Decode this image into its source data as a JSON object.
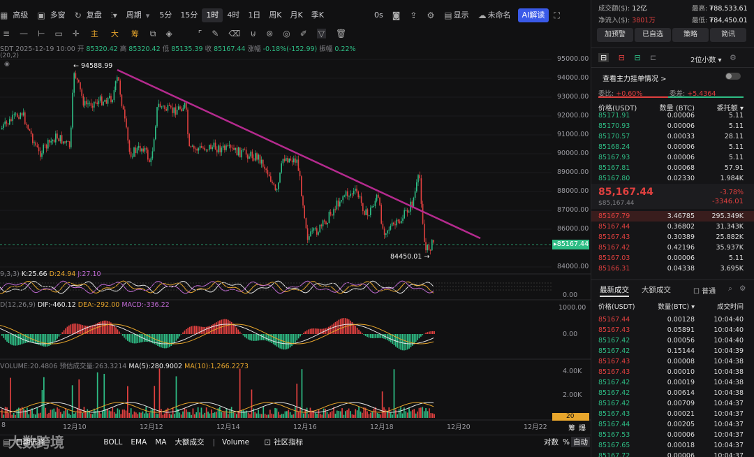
{
  "toolbar": {
    "items": [
      "高级",
      "多窗",
      "复盘",
      "周期",
      "5分",
      "15分",
      "1时",
      "4时",
      "1日",
      "周K",
      "月K",
      "季K"
    ],
    "zero_s": "0s",
    "show": "显示",
    "unnamed": "未命名",
    "ai": "AI解读"
  },
  "draw_tools": [
    "主",
    "大",
    "筹"
  ],
  "info": {
    "pair": "SDT",
    "date": "2025-12-19 10:00",
    "open_label": "开",
    "open": "85320.42",
    "high_label": "高",
    "high": "85320.42",
    "low_label": "低",
    "low": "85135.39",
    "close_label": "收",
    "close": "85167.44",
    "change_label": "涨幅",
    "change": "-0.18%(-152.99)",
    "amp_label": "振幅",
    "amp": "0.22%",
    "sub": "(20,2)"
  },
  "chart": {
    "price_labels": [
      "95000.00",
      "94000.00",
      "93000.00",
      "92000.00",
      "91000.00",
      "90000.00",
      "89000.00",
      "88000.00",
      "87000.00",
      "86000.00",
      "85000.00",
      "84000.00"
    ],
    "high_marker": "94588.99",
    "low_marker": "84450.01",
    "current_price": "85167.44",
    "x_labels": [
      "8",
      "12月10",
      "12月12",
      "12月14",
      "12月16",
      "12月18",
      "12月20",
      "12月22"
    ]
  },
  "kdj": {
    "label": "9,3,3)",
    "k": "K:25.66",
    "d": "D:24.94",
    "j": "J:27.10",
    "axis": "0.00"
  },
  "macd": {
    "label": "D(12,26,9)",
    "dif": "DIF:-460.12",
    "dea": "DEA:-292.00",
    "macd": "MACD:-336.22",
    "axis_top": "1000.00",
    "axis_mid": "0.00"
  },
  "volume": {
    "volume": "VOLUME:20.4806",
    "pred": "预估成交量:263.3214",
    "ma5": "MA(5):280.9002",
    "ma10": "MA(10):1,266.2273",
    "axis_top": "4.00K",
    "axis_mid": "2.00K",
    "current": "20",
    "tags": [
      "筹",
      "爆"
    ]
  },
  "bottom": {
    "items": [
      "BOLL",
      "EMA",
      "MA",
      "大额成交",
      "Volume",
      "社区指标"
    ],
    "right": [
      "对数",
      "%",
      "自动"
    ],
    "watermark": "大数跨境",
    "left": "日期选择"
  },
  "panel": {
    "turnover_label": "成交额($):",
    "turnover": "12亿",
    "high_label": "最高:",
    "high": "₮88,533.61",
    "inflow_label": "净流入($):",
    "inflow": "3801万",
    "low_label": "最低:",
    "low": "₮84,450.01",
    "buttons": [
      "加预警",
      "已自选",
      "策略",
      "简讯"
    ],
    "decimals": "2位小数",
    "depth_link": "查看主力挂单情况 >",
    "wei_bi_label": "委比:",
    "wei_bi": "+0.60%",
    "wei_cha_label": "委差:",
    "wei_cha": "+5.4364",
    "ob_headers": [
      "价格(USDT)",
      "数量 (BTC)",
      "委托额"
    ],
    "asks": [
      [
        "85171.91",
        "0.00006",
        "5.11"
      ],
      [
        "85170.93",
        "0.00006",
        "5.11"
      ],
      [
        "85170.57",
        "0.00033",
        "28.11"
      ],
      [
        "85168.24",
        "0.00006",
        "5.11"
      ],
      [
        "85167.93",
        "0.00006",
        "5.11"
      ],
      [
        "85167.81",
        "0.00068",
        "57.91"
      ],
      [
        "85167.80",
        "0.02330",
        "1.984K"
      ]
    ],
    "last_price": "85,167.44",
    "last_usd": "$85,167.44",
    "pct": "-3.78%",
    "abs_change": "-3346.01",
    "bids": [
      [
        "85167.79",
        "3.46785",
        "295.349K"
      ],
      [
        "85167.44",
        "0.36802",
        "31.343K"
      ],
      [
        "85167.43",
        "0.30389",
        "25.882K"
      ],
      [
        "85167.42",
        "0.42196",
        "35.937K"
      ],
      [
        "85167.03",
        "0.00006",
        "5.11"
      ],
      [
        "85166.31",
        "0.04338",
        "3.695K"
      ]
    ],
    "trade_tabs": [
      "最新成交",
      "大额成交"
    ],
    "normal": "普通",
    "trade_headers": [
      "价格(USDT)",
      "数量(BTC)",
      "成交时间"
    ],
    "trades": [
      [
        "85167.44",
        "0.00128",
        "10:04:40",
        "r"
      ],
      [
        "85167.43",
        "0.05891",
        "10:04:40",
        "r"
      ],
      [
        "85167.42",
        "0.00056",
        "10:04:40",
        "g"
      ],
      [
        "85167.42",
        "0.15144",
        "10:04:39",
        "g"
      ],
      [
        "85167.43",
        "0.00008",
        "10:04:38",
        "r"
      ],
      [
        "85167.43",
        "0.00010",
        "10:04:38",
        "r"
      ],
      [
        "85167.42",
        "0.00019",
        "10:04:38",
        "g"
      ],
      [
        "85167.42",
        "0.00614",
        "10:04:38",
        "g"
      ],
      [
        "85167.42",
        "0.00709",
        "10:04:37",
        "g"
      ],
      [
        "85167.43",
        "0.00021",
        "10:04:37",
        "g"
      ],
      [
        "85167.44",
        "0.00205",
        "10:04:37",
        "g"
      ],
      [
        "85167.53",
        "0.00006",
        "10:04:37",
        "g"
      ],
      [
        "85167.65",
        "0.00018",
        "10:04:37",
        "g"
      ],
      [
        "85167.72",
        "0.00006",
        "10:04:37",
        "g"
      ]
    ]
  }
}
